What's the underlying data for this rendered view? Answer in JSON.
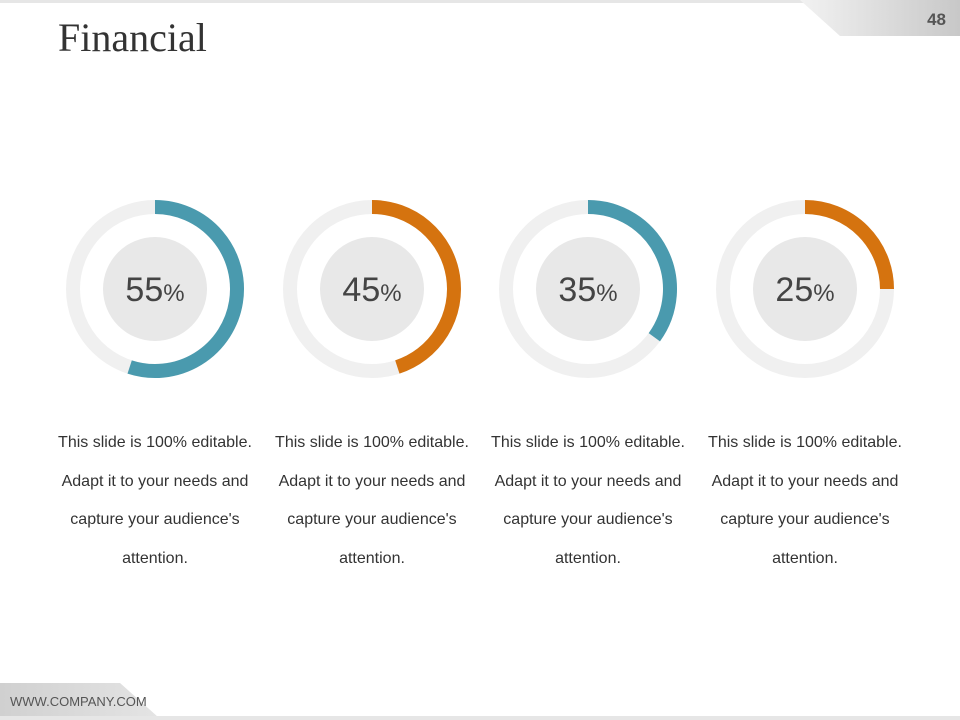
{
  "title": "Financial",
  "page_number": "48",
  "footer": "WWW.COMPANY.COM",
  "colors": {
    "teal": "#4a9aae",
    "orange": "#d5730f",
    "track": "#f0f0f0",
    "center": "#e8e8e8"
  },
  "chart_data": {
    "type": "pie",
    "variant": "donut",
    "items": [
      {
        "value": 55,
        "label": "55",
        "unit": "%",
        "color": "#4a9aae",
        "description": "This slide is 100% editable. Adapt it to your needs and capture your audience's attention."
      },
      {
        "value": 45,
        "label": "45",
        "unit": "%",
        "color": "#d5730f",
        "description": "This slide is 100% editable. Adapt it to your needs and capture your audience's attention."
      },
      {
        "value": 35,
        "label": "35",
        "unit": "%",
        "color": "#4a9aae",
        "description": "This slide is 100% editable. Adapt it to your needs and capture your audience's attention."
      },
      {
        "value": 25,
        "label": "25",
        "unit": "%",
        "color": "#d5730f",
        "description": "This slide is 100% editable. Adapt it to your needs and capture your audience's attention."
      }
    ]
  }
}
